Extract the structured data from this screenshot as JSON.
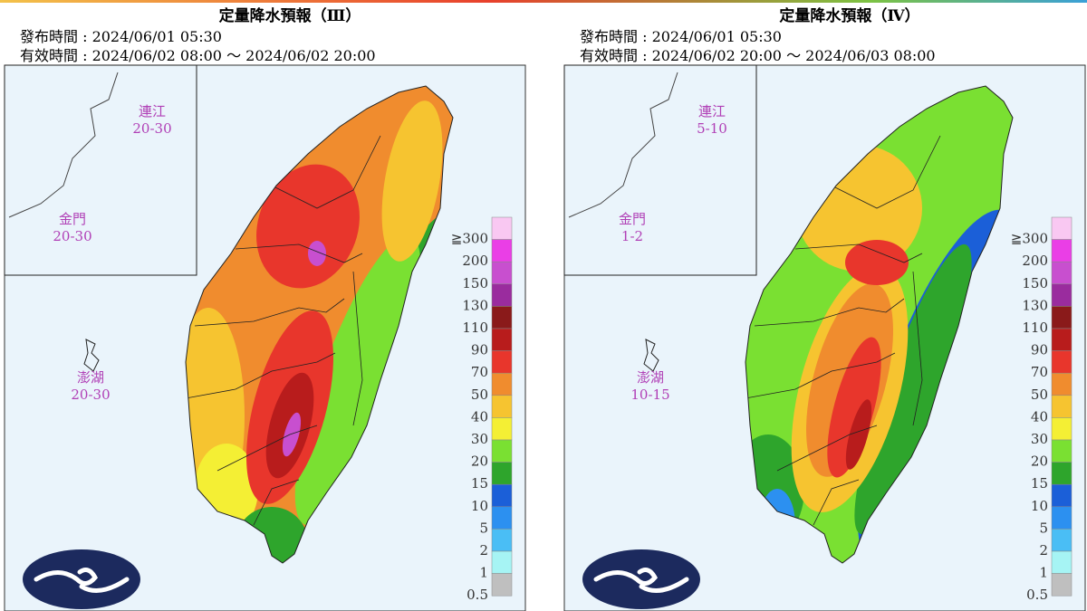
{
  "panels": [
    {
      "title": "定量降水預報（Ⅲ）",
      "issued": "發布時間 : 2024/06/01 05:30",
      "valid": "有效時間 : 2024/06/02 08:00 ～ 2024/06/02 20:00",
      "islands": [
        {
          "name": "連江",
          "range": "20-30"
        },
        {
          "name": "金門",
          "range": "20-30"
        },
        {
          "name": "澎湖",
          "range": "20-30"
        }
      ]
    },
    {
      "title": "定量降水預報（Ⅳ）",
      "issued": "發布時間 : 2024/06/01 05:30",
      "valid": "有效時間 : 2024/06/02 20:00 ～ 2024/06/03 08:00",
      "islands": [
        {
          "name": "連江",
          "range": "5-10"
        },
        {
          "name": "金門",
          "range": "1-2"
        },
        {
          "name": "澎湖",
          "range": "10-15"
        }
      ]
    }
  ],
  "legend": {
    "levels": [
      {
        "label": "≧300",
        "color": "#f9c8f2"
      },
      {
        "label": "200",
        "color": "#ea3ee6"
      },
      {
        "label": "150",
        "color": "#c84fcf"
      },
      {
        "label": "130",
        "color": "#9a2c9e"
      },
      {
        "label": "110",
        "color": "#8a1a1a"
      },
      {
        "label": "90",
        "color": "#b81c1c"
      },
      {
        "label": "70",
        "color": "#e8362c"
      },
      {
        "label": "50",
        "color": "#f08c2e"
      },
      {
        "label": "40",
        "color": "#f6c430"
      },
      {
        "label": "30",
        "color": "#f4ef34"
      },
      {
        "label": "20",
        "color": "#7ae032"
      },
      {
        "label": "15",
        "color": "#2ea52c"
      },
      {
        "label": "10",
        "color": "#1b5fd8"
      },
      {
        "label": "5",
        "color": "#2c90f0"
      },
      {
        "label": "2",
        "color": "#4abef5"
      },
      {
        "label": "1",
        "color": "#a6f4f4"
      },
      {
        "label": "0.5",
        "color": "#bfbfbf"
      }
    ]
  }
}
